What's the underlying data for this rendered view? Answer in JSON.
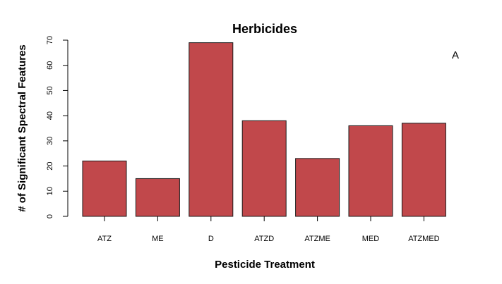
{
  "panel_label": "A",
  "colors": {
    "bar_fill": "#C1484B",
    "bar_stroke": "#1a1a1a"
  },
  "chart_data": {
    "type": "bar",
    "title": "Herbicides",
    "xlabel": "Pesticide Treatment",
    "ylabel": "# of Significant Spectral Features",
    "categories": [
      "ATZ",
      "ME",
      "D",
      "ATZD",
      "ATZME",
      "MED",
      "ATZMED"
    ],
    "values": [
      22,
      15,
      69,
      38,
      23,
      36,
      37
    ],
    "ylim": [
      0,
      70
    ],
    "yticks": [
      0,
      10,
      20,
      30,
      40,
      50,
      60,
      70
    ],
    "grid": false
  }
}
